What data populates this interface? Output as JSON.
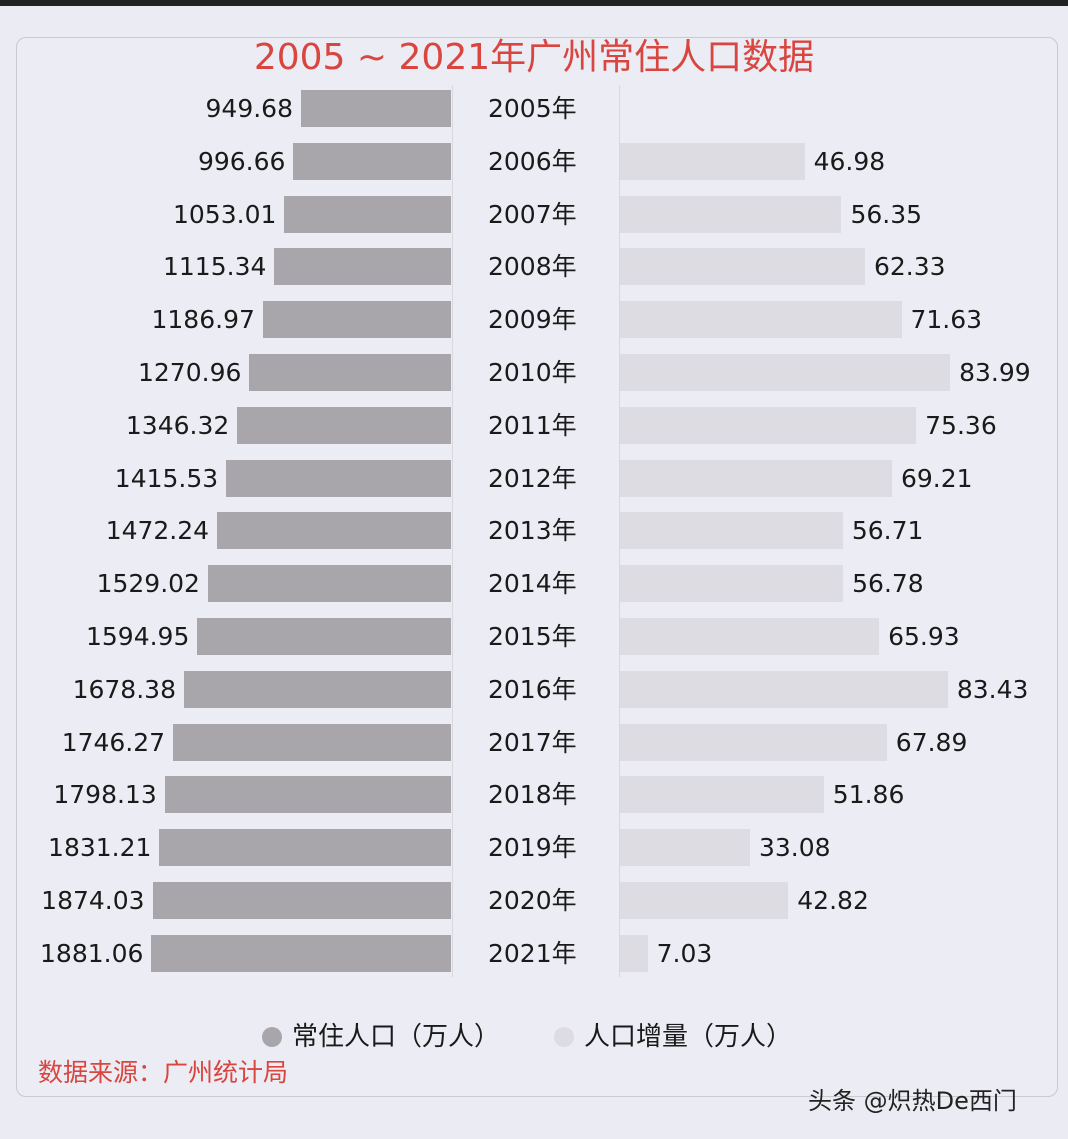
{
  "title": "2005 ~ 2021年广州常住人口数据",
  "chart_data": {
    "type": "bar",
    "title": "2005 ~ 2021年广州常住人口数据",
    "orientation": "horizontal-butterfly",
    "categories": [
      "2005年",
      "2006年",
      "2007年",
      "2008年",
      "2009年",
      "2010年",
      "2011年",
      "2012年",
      "2013年",
      "2014年",
      "2015年",
      "2016年",
      "2017年",
      "2018年",
      "2019年",
      "2020年",
      "2021年"
    ],
    "series": [
      {
        "name": "常住人口（万人）",
        "color": "#a8a6aa",
        "side": "left",
        "values": [
          949.68,
          996.66,
          1053.01,
          1115.34,
          1186.97,
          1270.96,
          1346.32,
          1415.53,
          1472.24,
          1529.02,
          1594.95,
          1678.38,
          1746.27,
          1798.13,
          1831.21,
          1874.03,
          1881.06
        ]
      },
      {
        "name": "人口增量（万人）",
        "color": "#dcdce2",
        "side": "right",
        "values": [
          null,
          46.98,
          56.35,
          62.33,
          71.63,
          83.99,
          75.36,
          69.21,
          56.71,
          56.78,
          65.93,
          83.43,
          67.89,
          51.86,
          33.08,
          42.82,
          7.03
        ]
      }
    ],
    "labels": {
      "left": [
        "949.68",
        "996.66",
        "1053.01",
        "1115.34",
        "1186.97",
        "1270.96",
        "1346.32",
        "1415.53",
        "1472.24",
        "1529.02",
        "1594.95",
        "1678.38",
        "1746.27",
        "1798.13",
        "1831.21",
        "1874.03",
        "1881.06"
      ],
      "right": [
        "",
        "46.98",
        "56.35",
        "62.33",
        "71.63",
        "83.99",
        "75.36",
        "69.21",
        "56.71",
        "56.78",
        "65.93",
        "83.43",
        "67.89",
        "51.86",
        "33.08",
        "42.82",
        "7.03"
      ]
    },
    "xlabel": "",
    "ylabel": "",
    "legend_position": "bottom",
    "grid": false
  },
  "legend": [
    {
      "label": "常住人口（万人）",
      "color": "#a8a6aa"
    },
    {
      "label": "人口增量（万人）",
      "color": "#dcdce2"
    }
  ],
  "source": "数据来源：广州统计局",
  "watermark": "头条 @炽热De西门"
}
